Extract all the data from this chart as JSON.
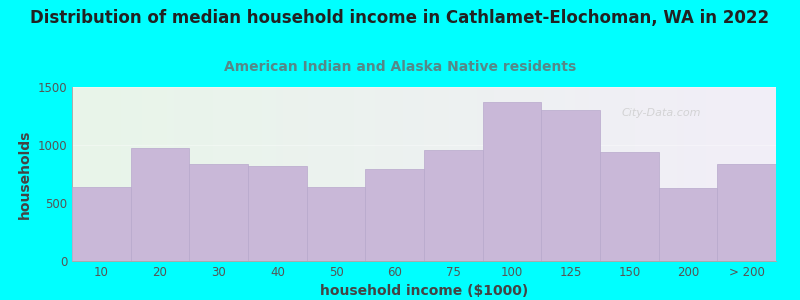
{
  "title": "Distribution of median household income in Cathlamet-Elochoman, WA in 2022",
  "subtitle": "American Indian and Alaska Native residents",
  "xlabel": "household income ($1000)",
  "ylabel": "households",
  "categories": [
    "10",
    "20",
    "30",
    "40",
    "50",
    "60",
    "75",
    "100",
    "125",
    "150",
    "200",
    "> 200"
  ],
  "values": [
    640,
    975,
    840,
    820,
    640,
    790,
    960,
    1370,
    1300,
    940,
    630,
    840
  ],
  "bar_color": "#c9b8d8",
  "bar_edge_color": "#b8a8cc",
  "background_outer": "#00ffff",
  "background_plot_left": "#e8f5e9",
  "background_plot_right": "#f0ecf5",
  "title_color": "#222222",
  "subtitle_color": "#558888",
  "axis_label_color": "#444444",
  "tick_color": "#555555",
  "ylim": [
    0,
    1500
  ],
  "yticks": [
    0,
    500,
    1000,
    1500
  ],
  "watermark": "City-Data.com",
  "title_fontsize": 12,
  "subtitle_fontsize": 10,
  "label_fontsize": 10,
  "tick_fontsize": 8.5
}
